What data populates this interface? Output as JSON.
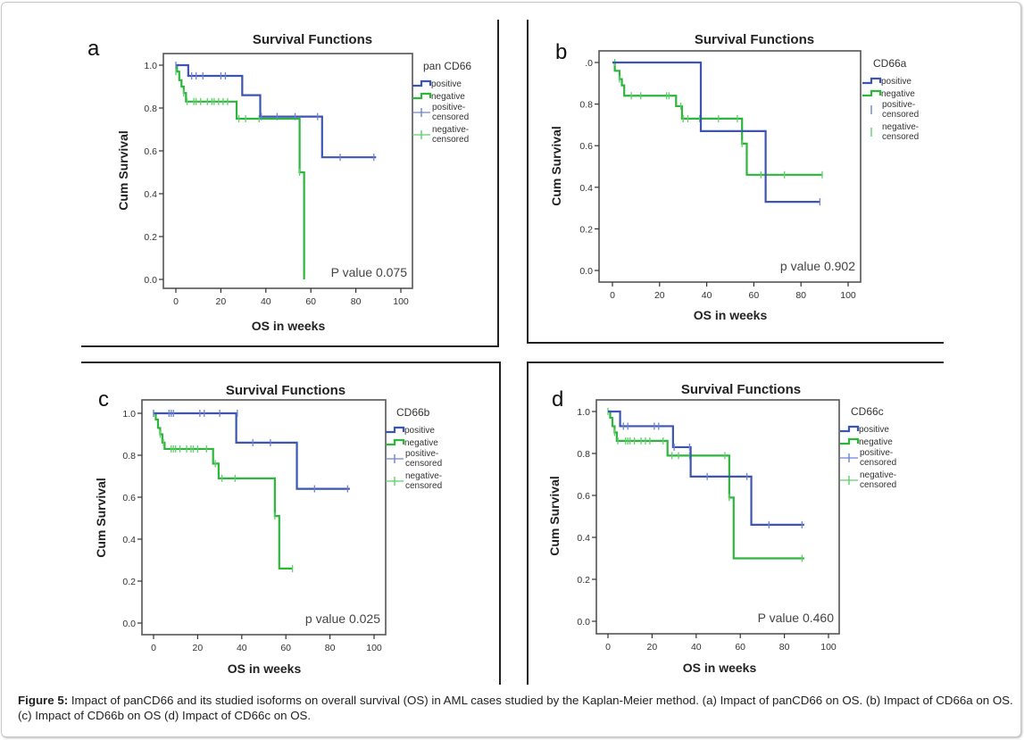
{
  "figure": {
    "caption_label": "Figure 5:",
    "caption_text": " Impact of panCD66 and its studied isoforms on overall survival (OS) in AML cases studied by the Kaplan-Meier method. (a) Impact of panCD66 on OS. (b) Impact of CD66a on OS. (c) Impact of CD66b on OS (d) Impact of CD66c on OS."
  },
  "colors": {
    "positive": "#3d55b0",
    "negative": "#2db53c",
    "positive_censored": "#6f83d4",
    "negative_censored": "#5fd06a"
  },
  "chart_data": [
    {
      "panel_letter": "a",
      "type": "line",
      "title": "Survival Functions",
      "xlabel": "OS in weeks",
      "ylabel": "Cum Survival",
      "xlim": [
        0,
        100
      ],
      "ylim": [
        0,
        1
      ],
      "xticks": [
        "0",
        "20",
        "40",
        "60",
        "80",
        "100"
      ],
      "yticks": [
        "0.0",
        "0.2",
        "0.4",
        "0.6",
        "0.8",
        "1.0"
      ],
      "legend_title": "pan CD66",
      "legend_entries": [
        "positive",
        "negative",
        "positive-censored",
        "negative-censored"
      ],
      "legend_censor_style": "plus",
      "annotation": "P value 0.075",
      "series": [
        {
          "name": "positive",
          "steps": [
            [
              0,
              1.0
            ],
            [
              5.5,
              0.95
            ],
            [
              29.5,
              0.86
            ],
            [
              37.5,
              0.76
            ],
            [
              65,
              0.57
            ],
            [
              89,
              0.57
            ]
          ],
          "censored": [
            [
              0,
              1.0
            ],
            [
              7,
              0.95
            ],
            [
              9,
              0.95
            ],
            [
              12,
              0.95
            ],
            [
              20,
              0.95
            ],
            [
              22,
              0.95
            ],
            [
              38,
              0.76
            ],
            [
              45,
              0.76
            ],
            [
              53,
              0.76
            ],
            [
              63,
              0.76
            ],
            [
              73,
              0.57
            ],
            [
              88,
              0.57
            ]
          ]
        },
        {
          "name": "negative",
          "steps": [
            [
              0,
              1.0
            ],
            [
              0.5,
              0.97
            ],
            [
              1.5,
              0.93
            ],
            [
              2.5,
              0.9
            ],
            [
              3.5,
              0.87
            ],
            [
              4.5,
              0.83
            ],
            [
              27,
              0.75
            ],
            [
              55,
              0.5
            ],
            [
              57,
              0.0
            ]
          ],
          "censored": [
            [
              0,
              0.97
            ],
            [
              3.5,
              0.87
            ],
            [
              5,
              0.83
            ],
            [
              8,
              0.83
            ],
            [
              9,
              0.83
            ],
            [
              11,
              0.83
            ],
            [
              14,
              0.83
            ],
            [
              16,
              0.83
            ],
            [
              17,
              0.83
            ],
            [
              19,
              0.83
            ],
            [
              21,
              0.83
            ],
            [
              23,
              0.83
            ],
            [
              28,
              0.75
            ],
            [
              31,
              0.75
            ],
            [
              37,
              0.75
            ],
            [
              55,
              0.5
            ]
          ]
        }
      ]
    },
    {
      "panel_letter": "b",
      "type": "line",
      "title": "Survival Functions",
      "xlabel": "OS in weeks",
      "ylabel": "Cum Survival",
      "xlim": [
        0,
        100
      ],
      "ylim": [
        0,
        1
      ],
      "xticks": [
        "0",
        "20",
        "40",
        "60",
        "80",
        "100"
      ],
      "yticks": [
        "0.0",
        "0.2",
        "0.4",
        "0.6",
        "0.8",
        ".0"
      ],
      "legend_title": "CD66a",
      "legend_entries": [
        "positive",
        "negative",
        "positive-censored",
        "negative-censored"
      ],
      "legend_censor_style": "tick",
      "annotation": "p value 0.902",
      "series": [
        {
          "name": "positive",
          "steps": [
            [
              0,
              1.0
            ],
            [
              37.5,
              0.67
            ],
            [
              65,
              0.33
            ],
            [
              88,
              0.33
            ]
          ],
          "censored": [
            [
              88,
              0.33
            ]
          ]
        },
        {
          "name": "negative",
          "steps": [
            [
              0,
              1.0
            ],
            [
              1,
              0.96
            ],
            [
              3,
              0.92
            ],
            [
              4,
              0.89
            ],
            [
              5,
              0.84
            ],
            [
              27,
              0.79
            ],
            [
              29.5,
              0.73
            ],
            [
              55,
              0.61
            ],
            [
              57,
              0.46
            ],
            [
              89,
              0.46
            ]
          ],
          "censored": [
            [
              1,
              1.0
            ],
            [
              3,
              0.92
            ],
            [
              8,
              0.84
            ],
            [
              12,
              0.84
            ],
            [
              23,
              0.84
            ],
            [
              24,
              0.84
            ],
            [
              29,
              0.79
            ],
            [
              30,
              0.73
            ],
            [
              32,
              0.73
            ],
            [
              37,
              0.73
            ],
            [
              45,
              0.73
            ],
            [
              53,
              0.73
            ],
            [
              55,
              0.61
            ],
            [
              63,
              0.46
            ],
            [
              73,
              0.46
            ],
            [
              89,
              0.46
            ]
          ]
        }
      ]
    },
    {
      "panel_letter": "c",
      "type": "line",
      "title": "Survival Functions",
      "xlabel": "OS in weeks",
      "ylabel": "Cum Survival",
      "xlim": [
        0,
        100
      ],
      "ylim": [
        0,
        1
      ],
      "xticks": [
        "0",
        "20",
        "40",
        "60",
        "80",
        "100"
      ],
      "yticks": [
        "0.0",
        "0.2",
        "0.4",
        "0.6",
        "0.8",
        "1.0"
      ],
      "legend_title": "CD66b",
      "legend_entries": [
        "positive",
        "negative",
        "positive-censored",
        "negative-censored"
      ],
      "legend_censor_style": "plus",
      "annotation": "p value 0.025",
      "series": [
        {
          "name": "positive",
          "steps": [
            [
              0,
              1.0
            ],
            [
              37.5,
              0.86
            ],
            [
              65,
              0.64
            ],
            [
              89,
              0.64
            ]
          ],
          "censored": [
            [
              0,
              1.0
            ],
            [
              7,
              1.0
            ],
            [
              8,
              1.0
            ],
            [
              9,
              1.0
            ],
            [
              21,
              1.0
            ],
            [
              23,
              1.0
            ],
            [
              30,
              1.0
            ],
            [
              38,
              1.0
            ],
            [
              45,
              0.86
            ],
            [
              53,
              0.86
            ],
            [
              73,
              0.64
            ],
            [
              88,
              0.64
            ]
          ]
        },
        {
          "name": "negative",
          "steps": [
            [
              0,
              1.0
            ],
            [
              1,
              0.97
            ],
            [
              2,
              0.93
            ],
            [
              3,
              0.9
            ],
            [
              4,
              0.86
            ],
            [
              5,
              0.83
            ],
            [
              27,
              0.76
            ],
            [
              29.5,
              0.69
            ],
            [
              55,
              0.51
            ],
            [
              57,
              0.26
            ],
            [
              63,
              0.26
            ]
          ],
          "censored": [
            [
              0,
              1.0
            ],
            [
              3,
              0.9
            ],
            [
              4.5,
              0.86
            ],
            [
              8,
              0.83
            ],
            [
              9,
              0.83
            ],
            [
              10,
              0.83
            ],
            [
              12,
              0.83
            ],
            [
              15,
              0.83
            ],
            [
              17,
              0.83
            ],
            [
              18,
              0.83
            ],
            [
              20,
              0.83
            ],
            [
              24,
              0.83
            ],
            [
              28,
              0.76
            ],
            [
              31,
              0.69
            ],
            [
              37,
              0.69
            ],
            [
              55,
              0.51
            ],
            [
              63,
              0.26
            ]
          ]
        }
      ]
    },
    {
      "panel_letter": "d",
      "type": "line",
      "title": "Survival Functions",
      "xlabel": "OS in weeks",
      "ylabel": "Cum Survival",
      "xlim": [
        0,
        100
      ],
      "ylim": [
        0,
        1
      ],
      "xticks": [
        "0",
        "20",
        "40",
        "60",
        "80",
        "100"
      ],
      "yticks": [
        "0.0",
        "0.2",
        "0.4",
        "0.6",
        "0.8",
        "1.0"
      ],
      "legend_title": "CD66c",
      "legend_entries": [
        "positive",
        "negative",
        "positive-censored",
        "negative-censored"
      ],
      "legend_censor_style": "plus",
      "annotation": "P value 0.460",
      "series": [
        {
          "name": "positive",
          "steps": [
            [
              0,
              1.0
            ],
            [
              5.5,
              0.93
            ],
            [
              29.5,
              0.83
            ],
            [
              37.5,
              0.69
            ],
            [
              65,
              0.46
            ],
            [
              89,
              0.46
            ]
          ],
          "censored": [
            [
              7,
              0.93
            ],
            [
              9,
              0.93
            ],
            [
              21,
              0.93
            ],
            [
              23,
              0.93
            ],
            [
              30,
              0.83
            ],
            [
              37,
              0.83
            ],
            [
              45,
              0.69
            ],
            [
              63,
              0.69
            ],
            [
              73,
              0.46
            ],
            [
              88,
              0.46
            ]
          ]
        },
        {
          "name": "negative",
          "steps": [
            [
              0,
              1.0
            ],
            [
              1,
              0.97
            ],
            [
              2,
              0.93
            ],
            [
              3,
              0.9
            ],
            [
              4,
              0.86
            ],
            [
              27,
              0.79
            ],
            [
              55,
              0.59
            ],
            [
              57,
              0.3
            ],
            [
              89,
              0.3
            ]
          ],
          "censored": [
            [
              0,
              1.0
            ],
            [
              3,
              0.9
            ],
            [
              4.5,
              0.86
            ],
            [
              8,
              0.86
            ],
            [
              9,
              0.86
            ],
            [
              10,
              0.86
            ],
            [
              12,
              0.86
            ],
            [
              15,
              0.86
            ],
            [
              17,
              0.86
            ],
            [
              19,
              0.86
            ],
            [
              25,
              0.86
            ],
            [
              29,
              0.79
            ],
            [
              32,
              0.79
            ],
            [
              37,
              0.79
            ],
            [
              53,
              0.79
            ],
            [
              55,
              0.59
            ],
            [
              88,
              0.3
            ]
          ]
        }
      ]
    }
  ]
}
